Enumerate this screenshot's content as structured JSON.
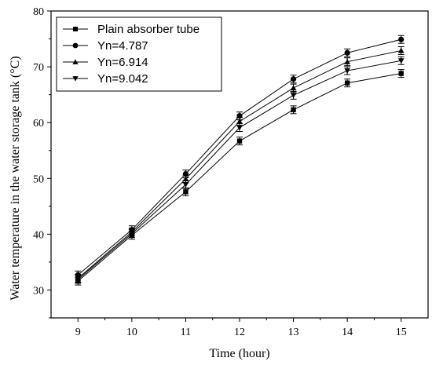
{
  "chart_data": {
    "type": "line",
    "title": "",
    "xlabel": "Time (hour)",
    "ylabel": "Water temperature in the water storage tank (°C)",
    "x": [
      9,
      10,
      11,
      12,
      13,
      14,
      15
    ],
    "xlim": [
      8.5,
      15.5
    ],
    "ylim": [
      25,
      80
    ],
    "xticks": [
      9,
      10,
      11,
      12,
      13,
      14,
      15
    ],
    "yticks": [
      30,
      40,
      50,
      60,
      70,
      80
    ],
    "xtick_labels": [
      "9",
      "10",
      "11",
      "12",
      "13",
      "14",
      "15"
    ],
    "ytick_labels": [
      "30",
      "40",
      "50",
      "60",
      "70",
      "80"
    ],
    "grid": false,
    "legend_position": "top-left",
    "error_bar": 0.7,
    "series": [
      {
        "name": "Plain absorber tube",
        "marker": "square",
        "values": [
          31.6,
          39.8,
          47.6,
          56.7,
          62.3,
          67.1,
          68.8
        ]
      },
      {
        "name": "Yn=4.787",
        "marker": "circle",
        "values": [
          32.7,
          40.8,
          50.8,
          61.2,
          67.8,
          72.5,
          74.9
        ]
      },
      {
        "name": "Yn=6.914",
        "marker": "triangle-up",
        "values": [
          32.1,
          40.4,
          49.9,
          60.2,
          66.2,
          70.9,
          72.9
        ]
      },
      {
        "name": "Yn=9.042",
        "marker": "triangle-down",
        "values": [
          31.9,
          40.1,
          48.9,
          59.1,
          64.9,
          69.3,
          71.1
        ]
      }
    ],
    "color": "#000000"
  }
}
